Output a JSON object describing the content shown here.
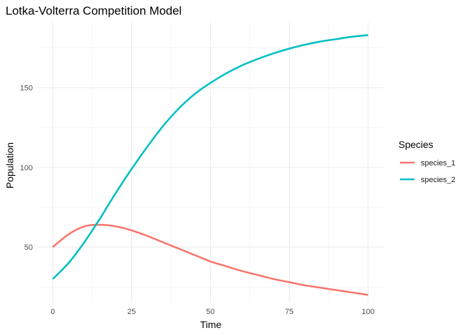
{
  "chart_data": {
    "type": "line",
    "title": "Lotka-Volterra Competition Model",
    "xlabel": "Time",
    "ylabel": "Population",
    "xlim": [
      -5,
      105
    ],
    "ylim": [
      15,
      191
    ],
    "xticks": [
      0,
      25,
      50,
      75,
      100
    ],
    "yticks": [
      50,
      100,
      150
    ],
    "xtick_labels": [
      "0",
      "25",
      "50",
      "75",
      "100"
    ],
    "ytick_labels": [
      "50",
      "100",
      "150"
    ],
    "grid": true,
    "legend": {
      "title": "Species",
      "position": "right"
    },
    "x": [
      0,
      5,
      10,
      15,
      20,
      25,
      30,
      35,
      40,
      45,
      50,
      55,
      60,
      65,
      70,
      75,
      80,
      85,
      90,
      95,
      100
    ],
    "series": [
      {
        "name": "species_1",
        "color": "#F8766D",
        "values": [
          50,
          58,
          63,
          64,
          63,
          60.5,
          57,
          53,
          49,
          45,
          41,
          38,
          35,
          32.5,
          30,
          28,
          26,
          24.5,
          23,
          21.5,
          20
        ]
      },
      {
        "name": "species_2",
        "color": "#00BFC4",
        "values": [
          30,
          40,
          53,
          68,
          84,
          99,
          113,
          126,
          137,
          146,
          153,
          159,
          164,
          168,
          171.5,
          174.5,
          177,
          179,
          180.5,
          182,
          183
        ]
      }
    ]
  }
}
